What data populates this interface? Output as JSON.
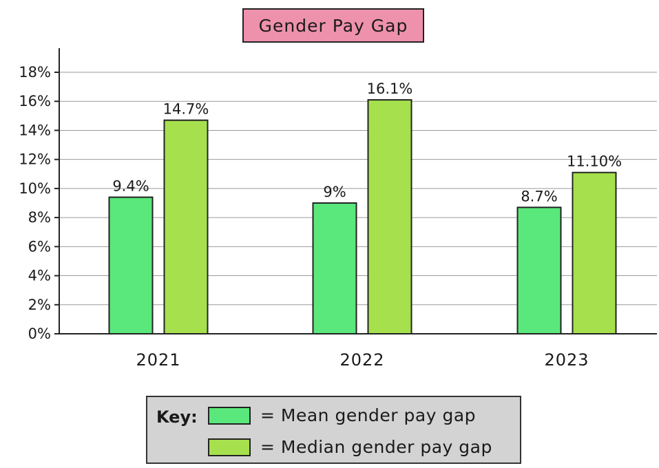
{
  "chart_data": {
    "type": "bar",
    "title": "Gender Pay Gap",
    "categories": [
      "2021",
      "2022",
      "2023"
    ],
    "series": [
      {
        "name": "Mean gender pay gap",
        "color": "#5ae87c",
        "values": [
          9.4,
          9,
          8.7
        ],
        "labels": [
          "9.4%",
          "9%",
          "8.7%"
        ]
      },
      {
        "name": "Median gender pay gap",
        "color": "#a6e14d",
        "values": [
          14.7,
          16.1,
          11.1
        ],
        "labels": [
          "14.7%",
          "16.1%",
          "11.10%"
        ]
      }
    ],
    "ylim": [
      0,
      18
    ],
    "yticks": [
      0,
      2,
      4,
      6,
      8,
      10,
      12,
      14,
      16,
      18
    ],
    "ytick_labels": [
      "0%",
      "2%",
      "4%",
      "6%",
      "8%",
      "10%",
      "12%",
      "14%",
      "16%",
      "18%"
    ],
    "xlabel": "",
    "ylabel": "",
    "grid": true,
    "legend": {
      "heading": "Key:",
      "position": "bottom-center",
      "items": [
        "= Mean gender pay gap",
        "= Median gender pay gap"
      ]
    }
  }
}
